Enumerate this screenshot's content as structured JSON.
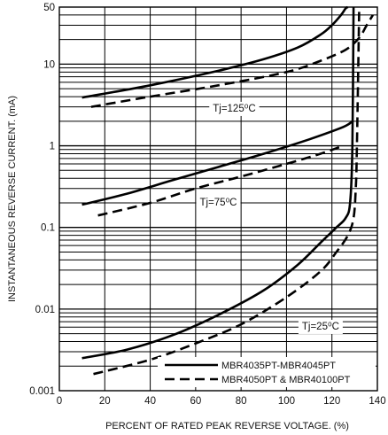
{
  "chart_data": {
    "type": "line",
    "title": "",
    "xlabel": "PERCENT OF RATED PEAK REVERSE VOLTAGE. (%)",
    "ylabel": "INSTANTANEOUS REVERSE CURRENT. (mA)",
    "xlim": [
      0,
      140
    ],
    "ylim": [
      0.001,
      50
    ],
    "yscale": "log",
    "x_ticks": [
      "0",
      "20",
      "40",
      "60",
      "80",
      "100",
      "120",
      "140"
    ],
    "y_ticks": [
      "0.001",
      "0.01",
      "0.1",
      "1",
      "10",
      "50"
    ],
    "grid": true,
    "legend_position": "bottom-right",
    "legend": [
      {
        "label": "MBR4035PT-MBR4045PT",
        "style": "solid"
      },
      {
        "label": "MBR4050PT & MBR40100PT",
        "style": "dashed"
      }
    ],
    "annotations": [
      {
        "text": "Tj=125⁰C",
        "x": 77,
        "y": 2.9
      },
      {
        "text": "Tj=75⁰C",
        "x": 70,
        "y": 0.205
      },
      {
        "text": "Tj=25⁰C",
        "x": 115,
        "y": 0.0062
      }
    ],
    "series": [
      {
        "temperature": "Tj=125°C",
        "style": "solid",
        "x": [
          10,
          40,
          70,
          90,
          105,
          115,
          120,
          124,
          126,
          127
        ],
        "y": [
          3.9,
          5.5,
          8.3,
          11.5,
          16,
          23,
          30,
          40,
          48,
          50
        ]
      },
      {
        "temperature": "Tj=125°C",
        "style": "dashed",
        "x": [
          14,
          40,
          70,
          100,
          115,
          126,
          132,
          135,
          138
        ],
        "y": [
          3.0,
          4.0,
          5.5,
          8.0,
          11,
          15,
          21,
          29,
          40
        ]
      },
      {
        "temperature": "Tj=75°C",
        "style": "solid",
        "x": [
          10,
          30,
          50,
          70,
          90,
          110,
          125,
          129
        ],
        "y": [
          0.19,
          0.26,
          0.38,
          0.55,
          0.8,
          1.2,
          1.7,
          2.0
        ]
      },
      {
        "temperature": "Tj=75°C",
        "style": "dashed",
        "x": [
          17,
          40,
          60,
          80,
          100,
          115,
          125
        ],
        "y": [
          0.14,
          0.2,
          0.3,
          0.42,
          0.6,
          0.8,
          1.0
        ]
      },
      {
        "temperature": "Tj=25°C",
        "style": "solid",
        "x": [
          10,
          30,
          50,
          70,
          90,
          105,
          115,
          122,
          126,
          128,
          129,
          129.5
        ],
        "y": [
          0.0025,
          0.0032,
          0.0048,
          0.0085,
          0.017,
          0.035,
          0.065,
          0.1,
          0.13,
          0.2,
          1.0,
          50
        ]
      },
      {
        "temperature": "Tj=25°C",
        "style": "dashed",
        "x": [
          15,
          40,
          60,
          80,
          100,
          115,
          122,
          127,
          129.5,
          130.5,
          131,
          132
        ],
        "y": [
          0.0016,
          0.0024,
          0.0038,
          0.0065,
          0.014,
          0.029,
          0.05,
          0.08,
          0.13,
          0.3,
          1.0,
          50
        ]
      }
    ]
  }
}
